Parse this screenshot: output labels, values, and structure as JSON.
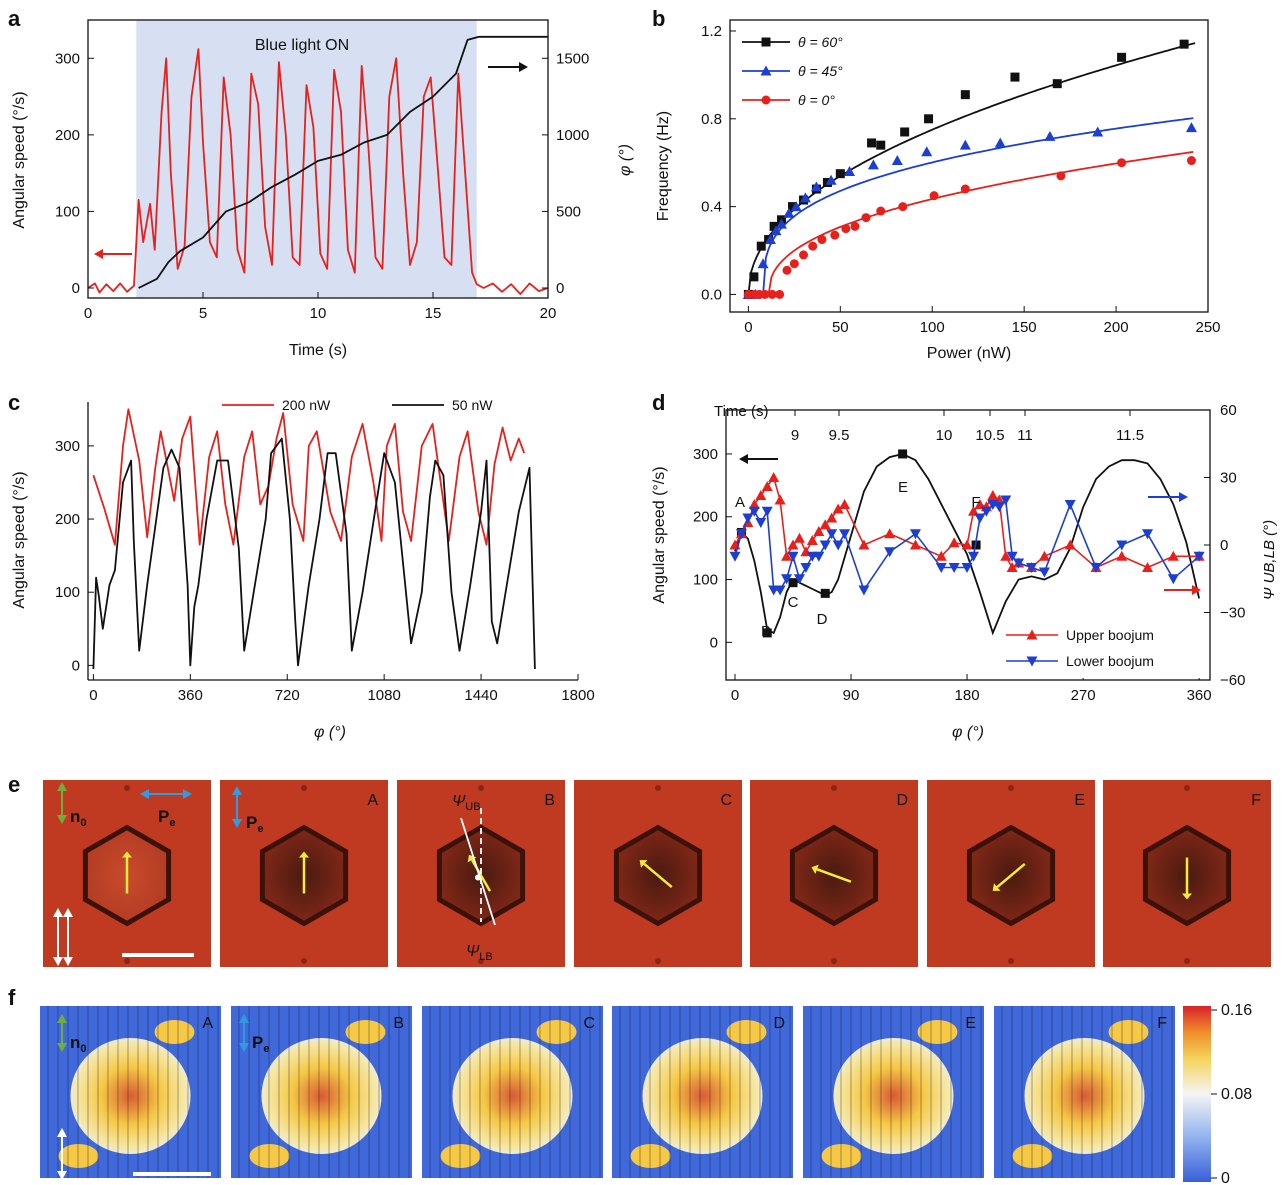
{
  "panels": {
    "a": {
      "letter": "a",
      "xlabel": "Time (s)",
      "ylabel_left": "Angular speed (°/s)",
      "ylabel_right": "φ (°)",
      "xticks": [
        "0",
        "5",
        "10",
        "15",
        "20"
      ],
      "yticks_left": [
        "0",
        "100",
        "200",
        "300"
      ],
      "yticks_right": [
        "0",
        "500",
        "1000",
        "1500"
      ],
      "shade_label": "Blue light ON"
    },
    "b": {
      "letter": "b",
      "xlabel": "Power (nW)",
      "ylabel": "Frequency (Hz)",
      "xticks": [
        "0",
        "50",
        "100",
        "150",
        "200",
        "250"
      ],
      "yticks": [
        "0.0",
        "0.4",
        "0.8",
        "1.2"
      ],
      "legend": [
        "θ = 60°",
        "θ = 45°",
        "θ = 0°"
      ]
    },
    "c": {
      "letter": "c",
      "xlabel": "φ (°)",
      "ylabel": "Angular speed (°/s)",
      "xticks": [
        "0",
        "360",
        "720",
        "1080",
        "1440",
        "1800"
      ],
      "yticks": [
        "0",
        "100",
        "200",
        "300"
      ],
      "legend": [
        "200 nW",
        "50 nW"
      ]
    },
    "d": {
      "letter": "d",
      "xlabel": "φ (°)",
      "ylabel_left": "Angular speed (°/s)",
      "ylabel_right": "Ψ UB,LB (°)",
      "xticks": [
        "0",
        "90",
        "180",
        "270",
        "360"
      ],
      "yticks_left": [
        "0",
        "100",
        "200",
        "300"
      ],
      "yticks_right": [
        "−60",
        "−30",
        "0",
        "30",
        "60"
      ],
      "time_label": "Time (s)",
      "time_ticks": [
        "9",
        "9.5",
        "10",
        "10.5",
        "11",
        "11.5"
      ],
      "point_labels": [
        "A",
        "B",
        "C",
        "D",
        "E",
        "F"
      ],
      "legend": [
        "Upper boojum",
        "Lower boojum"
      ]
    },
    "e": {
      "letter": "e",
      "n0": "n",
      "n0_sub": "0",
      "pe": "P",
      "pe_sub": "e",
      "frames": [
        "",
        "A",
        "B",
        "C",
        "D",
        "E",
        "F"
      ],
      "psi_ub": "Ψ",
      "psi_ub_sub": "UB",
      "psi_lb": "Ψ",
      "psi_lb_sub": "LB"
    },
    "f": {
      "letter": "f",
      "frames": [
        "A",
        "B",
        "C",
        "D",
        "E",
        "F"
      ],
      "colorbar_ticks": [
        "0.16",
        "0.08",
        "0"
      ]
    }
  },
  "chart_data": [
    {
      "type": "line",
      "panel": "a",
      "x_unit": "s",
      "xlim": [
        0,
        20
      ],
      "ylim": [
        0,
        350
      ],
      "y2lim": [
        0,
        1750
      ],
      "shaded_region": [
        2.1,
        16.9
      ],
      "series": [
        {
          "axis": "left",
          "color": "#e8201c",
          "x": [
            0,
            0.3,
            0.5,
            0.8,
            1.1,
            1.4,
            1.7,
            2.0,
            2.2,
            2.4,
            2.7,
            2.9,
            3.2,
            3.4,
            3.6,
            3.9,
            4.2,
            4.5,
            4.8,
            5.0,
            5.3,
            5.6,
            5.9,
            6.2,
            6.5,
            6.8,
            7.1,
            7.4,
            7.7,
            8.0,
            8.3,
            8.6,
            8.9,
            9.2,
            9.5,
            9.8,
            10.1,
            10.4,
            10.7,
            11.0,
            11.3,
            11.6,
            11.9,
            12.2,
            12.5,
            12.8,
            13.1,
            13.4,
            13.7,
            14.0,
            14.3,
            14.6,
            14.9,
            15.2,
            15.5,
            15.8,
            16.1,
            16.4,
            16.7,
            16.9,
            17.2,
            17.6,
            18.0,
            18.4,
            18.8,
            19.2,
            19.6,
            20
          ],
          "y": [
            0,
            6,
            -6,
            5,
            -4,
            6,
            -5,
            3,
            115,
            60,
            110,
            50,
            230,
            300,
            150,
            25,
            55,
            250,
            312,
            190,
            60,
            40,
            275,
            200,
            50,
            20,
            280,
            240,
            80,
            30,
            295,
            200,
            40,
            30,
            265,
            210,
            45,
            25,
            285,
            230,
            50,
            20,
            290,
            180,
            40,
            25,
            250,
            300,
            150,
            30,
            60,
            250,
            275,
            160,
            40,
            30,
            280,
            150,
            20,
            5,
            0,
            6,
            -5,
            5,
            -8,
            6,
            -4,
            0
          ]
        },
        {
          "axis": "right",
          "color": "#111111",
          "x": [
            2.2,
            3.0,
            3.5,
            4.0,
            5.0,
            6.0,
            7.0,
            8.0,
            9.0,
            10.0,
            11.0,
            12.0,
            13.0,
            14.0,
            15.0,
            16.0,
            16.5,
            17.0,
            18.0,
            20.0
          ],
          "y": [
            0,
            60,
            170,
            240,
            330,
            500,
            560,
            660,
            740,
            830,
            870,
            950,
            1000,
            1150,
            1250,
            1400,
            1620,
            1640,
            1640,
            1640
          ]
        }
      ]
    },
    {
      "type": "scatter",
      "panel": "b",
      "xlabel": "Power (nW)",
      "ylabel": "Frequency (Hz)",
      "xlim": [
        -10,
        250
      ],
      "ylim": [
        -0.08,
        1.25
      ],
      "series": [
        {
          "name": "θ = 60°",
          "color": "#111111",
          "marker": "square",
          "x": [
            0,
            3,
            7,
            11,
            14,
            18,
            24,
            30,
            37,
            43,
            50,
            67,
            72,
            85,
            98,
            118,
            145,
            168,
            203,
            237
          ],
          "y": [
            0.0,
            0.08,
            0.22,
            0.25,
            0.31,
            0.34,
            0.4,
            0.43,
            0.48,
            0.51,
            0.55,
            0.69,
            0.68,
            0.74,
            0.8,
            0.91,
            0.99,
            0.96,
            1.08,
            1.14
          ]
        },
        {
          "name": "θ = 45°",
          "color": "#1d3fd1",
          "marker": "triangle-up",
          "x": [
            0,
            4,
            8,
            12,
            15,
            18,
            22,
            26,
            31,
            37,
            45,
            55,
            68,
            81,
            97,
            118,
            137,
            164,
            190,
            241
          ],
          "y": [
            0.0,
            0.0,
            0.14,
            0.25,
            0.29,
            0.32,
            0.37,
            0.4,
            0.44,
            0.49,
            0.52,
            0.56,
            0.59,
            0.61,
            0.65,
            0.68,
            0.69,
            0.72,
            0.74,
            0.76
          ]
        },
        {
          "name": "θ = 0°",
          "color": "#e8201c",
          "marker": "circle",
          "x": [
            0,
            3,
            6,
            9,
            13,
            17,
            21,
            25,
            30,
            35,
            40,
            47,
            53,
            58,
            64,
            72,
            84,
            101,
            118,
            170,
            203,
            241
          ],
          "y": [
            0.0,
            0.0,
            0.0,
            0.0,
            0.0,
            0.0,
            0.11,
            0.14,
            0.18,
            0.22,
            0.25,
            0.27,
            0.3,
            0.31,
            0.35,
            0.38,
            0.4,
            0.45,
            0.48,
            0.54,
            0.6,
            0.61
          ]
        }
      ]
    },
    {
      "type": "line",
      "panel": "c",
      "xlabel": "φ (°)",
      "ylabel": "Angular speed (°/s)",
      "xlim": [
        -20,
        1800
      ],
      "ylim": [
        -20,
        360
      ],
      "series": [
        {
          "name": "200 nW",
          "color": "#e8201c",
          "x": [
            0,
            40,
            80,
            110,
            130,
            170,
            200,
            230,
            250,
            300,
            330,
            360,
            395,
            430,
            460,
            490,
            520,
            560,
            590,
            620,
            650,
            680,
            705,
            740,
            780,
            800,
            830,
            880,
            920,
            960,
            1000,
            1040,
            1070,
            1090,
            1120,
            1150,
            1180,
            1220,
            1260,
            1290,
            1320,
            1360,
            1390,
            1430,
            1460,
            1490,
            1520,
            1550,
            1580,
            1600
          ],
          "y": [
            260,
            215,
            165,
            300,
            350,
            280,
            175,
            270,
            320,
            225,
            310,
            340,
            165,
            285,
            320,
            220,
            165,
            285,
            320,
            220,
            245,
            310,
            345,
            220,
            170,
            300,
            320,
            210,
            170,
            285,
            330,
            250,
            170,
            300,
            330,
            210,
            170,
            300,
            330,
            250,
            170,
            285,
            320,
            210,
            165,
            275,
            325,
            280,
            310,
            290
          ]
        },
        {
          "name": "50 nW",
          "color": "#111111",
          "x": [
            0,
            10,
            20,
            35,
            60,
            80,
            110,
            140,
            150,
            170,
            200,
            230,
            260,
            290,
            320,
            350,
            360,
            375,
            390,
            420,
            460,
            500,
            540,
            560,
            600,
            640,
            660,
            700,
            730,
            750,
            760,
            800,
            840,
            870,
            900,
            940,
            960,
            1000,
            1050,
            1080,
            1120,
            1150,
            1180,
            1220,
            1250,
            1270,
            1300,
            1330,
            1360,
            1400,
            1440,
            1460,
            1480,
            1500,
            1540,
            1580,
            1620,
            1640
          ],
          "y": [
            -5,
            120,
            95,
            50,
            110,
            130,
            250,
            280,
            170,
            20,
            110,
            190,
            270,
            295,
            270,
            110,
            0,
            80,
            110,
            200,
            280,
            280,
            160,
            20,
            110,
            200,
            290,
            310,
            200,
            60,
            0,
            110,
            200,
            290,
            290,
            180,
            20,
            100,
            220,
            290,
            250,
            140,
            30,
            100,
            230,
            280,
            260,
            100,
            20,
            110,
            210,
            280,
            60,
            30,
            120,
            210,
            270,
            -5
          ]
        }
      ]
    },
    {
      "type": "line",
      "panel": "d",
      "xlabel": "φ (°)",
      "xlim": [
        0,
        370
      ],
      "ylim": [
        -60,
        370
      ],
      "y2lim": [
        -60,
        60
      ],
      "series": [
        {
          "axis": "left",
          "color": "#111111",
          "marker": "square",
          "x": [
            0,
            5,
            10,
            15,
            20,
            25,
            30,
            35,
            40,
            45,
            50,
            55,
            60,
            65,
            70,
            75,
            80,
            90,
            100,
            110,
            120,
            130,
            140,
            150,
            160,
            170,
            180,
            190,
            200,
            205,
            210,
            220,
            230,
            240,
            250,
            260,
            270,
            280,
            290,
            300,
            310,
            320,
            330,
            340,
            350,
            360
          ],
          "y": [
            145,
            175,
            165,
            130,
            80,
            20,
            15,
            40,
            80,
            100,
            95,
            90,
            85,
            80,
            75,
            80,
            100,
            170,
            240,
            280,
            295,
            300,
            290,
            260,
            220,
            180,
            140,
            80,
            15,
            40,
            65,
            100,
            105,
            100,
            110,
            150,
            215,
            260,
            280,
            290,
            290,
            285,
            260,
            220,
            160,
            70
          ]
        },
        {
          "axis": "right",
          "color": "#e8201c",
          "name": "Upper boojum",
          "marker": "triangle-up",
          "x": [
            0,
            5,
            10,
            15,
            20,
            25,
            30,
            35,
            40,
            45,
            50,
            55,
            60,
            65,
            70,
            75,
            80,
            85,
            100,
            120,
            140,
            160,
            170,
            180,
            185,
            190,
            195,
            200,
            205,
            210,
            215,
            220,
            230,
            240,
            260,
            280,
            300,
            320,
            340,
            360
          ],
          "y": [
            0,
            5,
            10,
            18,
            22,
            26,
            30,
            20,
            -5,
            0,
            3,
            -3,
            2,
            6,
            9,
            12,
            16,
            18,
            0,
            5,
            0,
            -5,
            1,
            0,
            15,
            18,
            17,
            22,
            20,
            -5,
            -10,
            -8,
            -10,
            -5,
            0,
            -10,
            -5,
            -10,
            -5,
            -5
          ]
        },
        {
          "axis": "right",
          "color": "#1d3fd1",
          "name": "Lower boojum",
          "marker": "triangle-down",
          "x": [
            0,
            5,
            10,
            15,
            20,
            25,
            30,
            35,
            40,
            45,
            50,
            55,
            60,
            65,
            70,
            75,
            80,
            85,
            100,
            120,
            140,
            160,
            170,
            180,
            185,
            190,
            195,
            200,
            205,
            210,
            215,
            220,
            230,
            240,
            260,
            280,
            300,
            320,
            340,
            360
          ],
          "y": [
            -5,
            5,
            12,
            15,
            10,
            15,
            -20,
            -20,
            -15,
            -5,
            -15,
            -10,
            -5,
            -5,
            0,
            5,
            0,
            5,
            -20,
            -3,
            5,
            -10,
            -10,
            -10,
            -5,
            12,
            15,
            18,
            17,
            20,
            -5,
            -8,
            -10,
            -12,
            18,
            -10,
            0,
            5,
            -15,
            -5
          ]
        }
      ]
    }
  ]
}
